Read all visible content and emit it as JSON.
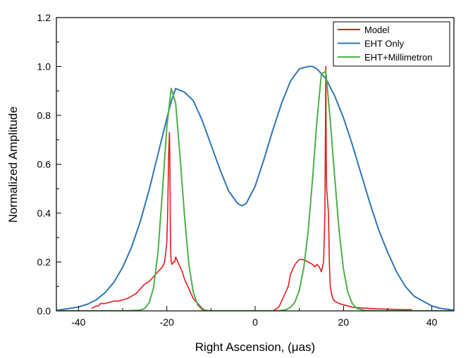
{
  "chart_data": {
    "type": "line",
    "xlabel": "Right Ascension, (μas)",
    "ylabel": "Normalized Amplitude",
    "xlim": [
      -45,
      45
    ],
    "ylim": [
      0,
      1.2
    ],
    "xticks": [
      -40,
      -20,
      0,
      20,
      40
    ],
    "xtick_labels": [
      "-40",
      "-20",
      "0",
      "20",
      "40"
    ],
    "yticks": [
      0,
      0.2,
      0.4,
      0.6,
      0.8,
      1.0,
      1.2
    ],
    "ytick_labels": [
      "0.0",
      "0.2",
      "0.4",
      "0.6",
      "0.8",
      "1.0",
      "1.2"
    ],
    "legend_position": "top-right",
    "series": [
      {
        "name": "Model",
        "color": "#e31a1c",
        "x": [
          -37,
          -36,
          -35.5,
          -35,
          -34,
          -33,
          -32,
          -31,
          -30,
          -29,
          -28,
          -27,
          -26,
          -25,
          -24,
          -23,
          -22,
          -21.5,
          -21,
          -20.5,
          -20,
          -19.8,
          -19.6,
          -19.4,
          -19.3,
          -19.2,
          -19.1,
          -19.0,
          -18.8,
          -18.5,
          -18.2,
          -18,
          -17.7,
          -17.5,
          -17,
          -16.5,
          -16,
          -15.5,
          -15,
          -14.5,
          -14,
          -13.5,
          -13,
          -12.5,
          -12,
          -11.5,
          -11,
          -10,
          -8,
          -6,
          -5,
          4,
          4.5,
          5,
          5.5,
          6,
          6.5,
          7,
          7.5,
          8,
          8.5,
          9,
          9.5,
          10,
          11,
          12,
          13,
          13.5,
          14,
          14.5,
          15,
          15.5,
          15.8,
          15.9,
          16.0,
          16.1,
          16.2,
          16.4,
          16.6,
          16.8,
          17,
          17.3,
          17.6,
          18,
          18.5,
          19,
          20,
          21,
          22,
          24,
          26,
          28,
          30,
          32,
          34,
          35.5
        ],
        "values": [
          0.01,
          0.02,
          0.02,
          0.03,
          0.03,
          0.035,
          0.04,
          0.04,
          0.045,
          0.05,
          0.06,
          0.07,
          0.09,
          0.11,
          0.12,
          0.14,
          0.16,
          0.17,
          0.18,
          0.2,
          0.28,
          0.4,
          0.63,
          0.73,
          0.6,
          0.33,
          0.23,
          0.2,
          0.19,
          0.2,
          0.2,
          0.22,
          0.21,
          0.2,
          0.18,
          0.16,
          0.13,
          0.11,
          0.09,
          0.07,
          0.05,
          0.04,
          0.03,
          0.02,
          0.01,
          0.005,
          0.0,
          0.0,
          0.0,
          0.0,
          0.0,
          0.0,
          0.005,
          0.01,
          0.02,
          0.04,
          0.06,
          0.08,
          0.1,
          0.15,
          0.17,
          0.19,
          0.2,
          0.21,
          0.21,
          0.2,
          0.19,
          0.18,
          0.19,
          0.18,
          0.16,
          0.2,
          0.4,
          0.7,
          1.0,
          0.6,
          0.5,
          0.45,
          0.4,
          0.2,
          0.1,
          0.07,
          0.05,
          0.04,
          0.035,
          0.03,
          0.025,
          0.02,
          0.015,
          0.012,
          0.01,
          0.008,
          0.007,
          0.006,
          0.005,
          0.005
        ]
      },
      {
        "name": "EHT Only",
        "color": "#2e75b6",
        "x": [
          -45,
          -42,
          -40,
          -38,
          -36,
          -34,
          -32,
          -30,
          -28,
          -26,
          -24,
          -22,
          -20,
          -19,
          -18,
          -16,
          -14,
          -12,
          -10,
          -8,
          -6,
          -4,
          -3,
          -2,
          0,
          2,
          4,
          6,
          8,
          10,
          12,
          13,
          14,
          16,
          18,
          20,
          22,
          24,
          26,
          28,
          30,
          32,
          34,
          36,
          38,
          40,
          42,
          45
        ],
        "values": [
          0.002,
          0.01,
          0.016,
          0.027,
          0.045,
          0.074,
          0.117,
          0.178,
          0.26,
          0.366,
          0.495,
          0.641,
          0.787,
          0.857,
          0.91,
          0.895,
          0.86,
          0.78,
          0.68,
          0.58,
          0.49,
          0.44,
          0.43,
          0.44,
          0.51,
          0.62,
          0.74,
          0.85,
          0.94,
          0.99,
          1.0,
          1.0,
          0.99,
          0.95,
          0.88,
          0.79,
          0.68,
          0.56,
          0.44,
          0.33,
          0.24,
          0.16,
          0.1,
          0.06,
          0.04,
          0.02,
          0.01,
          0.003
        ]
      },
      {
        "name": "EHT+Millimetron",
        "color": "#4daf4a",
        "x": [
          -45,
          -30,
          -26,
          -25,
          -24,
          -23,
          -22,
          -21,
          -20,
          -19,
          -18,
          -17,
          -16,
          -15,
          -14,
          -13,
          -12,
          -11,
          -10,
          -5,
          0,
          5,
          6,
          7,
          8,
          9,
          10,
          11,
          12,
          13,
          14,
          15,
          16,
          17,
          18,
          19,
          20,
          21,
          22,
          23,
          25,
          30,
          45
        ],
        "values": [
          0.0,
          0.0,
          0.003,
          0.01,
          0.033,
          0.095,
          0.238,
          0.487,
          0.751,
          0.91,
          0.85,
          0.63,
          0.391,
          0.189,
          0.075,
          0.024,
          0.005,
          0.002,
          0.0,
          0.0,
          0.0,
          0.0,
          0.002,
          0.005,
          0.014,
          0.036,
          0.084,
          0.175,
          0.325,
          0.54,
          0.78,
          0.97,
          0.98,
          0.78,
          0.55,
          0.33,
          0.17,
          0.075,
          0.03,
          0.01,
          0.001,
          0.0,
          0.0
        ]
      }
    ]
  }
}
